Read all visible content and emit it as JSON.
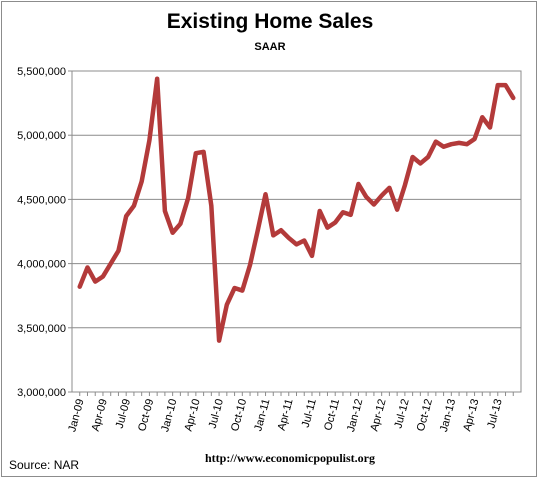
{
  "chart_data": {
    "type": "line",
    "title": "Existing Home Sales",
    "subtitle": "SAAR",
    "source": "Source:  NAR",
    "credit": "http://www.economicpopulist.org",
    "ylim": [
      3000000,
      5500000
    ],
    "yticks": [
      3000000,
      3500000,
      4000000,
      4500000,
      5000000,
      5500000
    ],
    "ytick_labels": [
      "3,000,000",
      "3,500,000",
      "4,000,000",
      "4,500,000",
      "5,000,000",
      "5,500,000"
    ],
    "grid": true,
    "line_color": "#b33a3a",
    "x": [
      "Jan-09",
      "Feb-09",
      "Mar-09",
      "Apr-09",
      "May-09",
      "Jun-09",
      "Jul-09",
      "Aug-09",
      "Sep-09",
      "Oct-09",
      "Nov-09",
      "Dec-09",
      "Jan-10",
      "Feb-10",
      "Mar-10",
      "Apr-10",
      "May-10",
      "Jun-10",
      "Jul-10",
      "Aug-10",
      "Sep-10",
      "Oct-10",
      "Nov-10",
      "Dec-10",
      "Jan-11",
      "Feb-11",
      "Mar-11",
      "Apr-11",
      "May-11",
      "Jun-11",
      "Jul-11",
      "Aug-11",
      "Sep-11",
      "Oct-11",
      "Nov-11",
      "Dec-11",
      "Jan-12",
      "Feb-12",
      "Mar-12",
      "Apr-12",
      "May-12",
      "Jun-12",
      "Jul-12",
      "Aug-12",
      "Sep-12",
      "Oct-12",
      "Nov-12",
      "Dec-12",
      "Jan-13",
      "Feb-13",
      "Mar-13",
      "Apr-13",
      "May-13",
      "Jun-13",
      "Jul-13",
      "Aug-13",
      "Sep-13"
    ],
    "xtick_labels": [
      "Jan-09",
      "Apr-09",
      "Jul-09",
      "Oct-09",
      "Jan-10",
      "Apr-10",
      "Jul-10",
      "Oct-10",
      "Jan-11",
      "Apr-11",
      "Jul-11",
      "Oct-11",
      "Jan-12",
      "Apr-12",
      "Jul-12",
      "Oct-12",
      "Jan-13",
      "Apr-13",
      "Jul-13"
    ],
    "series": [
      {
        "values": [
          3820000,
          3970000,
          3860000,
          3900000,
          4000000,
          4100000,
          4370000,
          4450000,
          4640000,
          4960000,
          5440000,
          4410000,
          4240000,
          4310000,
          4510000,
          4860000,
          4870000,
          4450000,
          3400000,
          3680000,
          3810000,
          3790000,
          3990000,
          4260000,
          4540000,
          4220000,
          4260000,
          4200000,
          4150000,
          4180000,
          4060000,
          4410000,
          4280000,
          4320000,
          4400000,
          4380000,
          4620000,
          4520000,
          4460000,
          4530000,
          4590000,
          4420000,
          4610000,
          4830000,
          4780000,
          4830000,
          4950000,
          4910000,
          4930000,
          4940000,
          4930000,
          4970000,
          5140000,
          5060000,
          5390000,
          5390000,
          5290000
        ]
      }
    ]
  }
}
